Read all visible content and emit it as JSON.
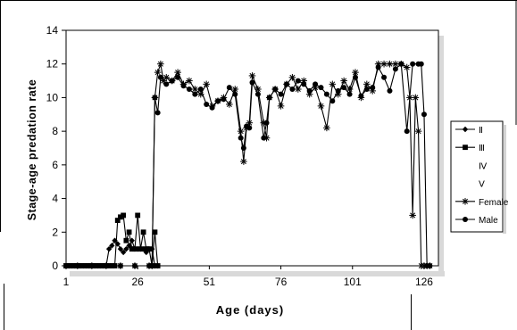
{
  "chart_data": {
    "type": "line",
    "title": "",
    "xlabel": "Age (days)",
    "ylabel": "Stage-age predation rate",
    "xlim": [
      1,
      131
    ],
    "ylim": [
      0,
      14
    ],
    "x_ticks": [
      1,
      26,
      51,
      76,
      101,
      126
    ],
    "y_ticks": [
      0,
      2,
      4,
      6,
      8,
      10,
      12,
      14
    ],
    "grid": false,
    "legend_position": "right",
    "series": [
      {
        "name": "Ⅱ",
        "marker": "diamond",
        "color": "#000000",
        "x": [
          1,
          2,
          3,
          4,
          5,
          6,
          7,
          8,
          9,
          10,
          11,
          12,
          13,
          14,
          15,
          16,
          17,
          18,
          19,
          20,
          21,
          22,
          23,
          24,
          25,
          26,
          27,
          28,
          29,
          30,
          31,
          32,
          33
        ],
        "y": [
          0,
          0,
          0,
          0,
          0,
          0,
          0,
          0,
          0,
          0,
          0,
          0,
          0,
          0,
          0,
          1,
          1.2,
          1.5,
          1.3,
          1,
          0.8,
          1,
          1.2,
          1.5,
          1,
          1,
          1,
          1,
          0.8,
          1,
          1,
          0,
          0
        ]
      },
      {
        "name": "Ⅲ",
        "marker": "square",
        "color": "#000000",
        "x": [
          1,
          2,
          3,
          4,
          5,
          6,
          7,
          8,
          9,
          10,
          11,
          12,
          13,
          14,
          15,
          16,
          17,
          18,
          19,
          20,
          21,
          22,
          23,
          24,
          25,
          26,
          27,
          28,
          29,
          30,
          31,
          32,
          33
        ],
        "y": [
          0,
          0,
          0,
          0,
          0,
          0,
          0,
          0,
          0,
          0,
          0,
          0,
          0,
          0,
          0,
          0,
          0,
          0,
          2.7,
          2.9,
          3,
          1.5,
          2,
          1,
          1,
          3,
          1,
          2,
          1,
          1,
          0,
          2,
          0
        ]
      },
      {
        "name": "Ⅳ",
        "marker": "none",
        "color": "#000000",
        "x": [
          1,
          131
        ],
        "y": [
          0,
          0
        ]
      },
      {
        "name": "Ⅴ",
        "marker": "none",
        "color": "#000000",
        "x": [
          1,
          131
        ],
        "y": [
          0,
          0
        ]
      },
      {
        "name": "Female",
        "marker": "star",
        "color": "#000000",
        "x": [
          1,
          5,
          10,
          15,
          20,
          25,
          30,
          31,
          32,
          33,
          34,
          35,
          36,
          38,
          40,
          42,
          44,
          46,
          48,
          50,
          52,
          54,
          56,
          58,
          60,
          62,
          63,
          64,
          65,
          66,
          68,
          70,
          71,
          72,
          74,
          76,
          78,
          80,
          82,
          84,
          86,
          88,
          90,
          92,
          94,
          96,
          98,
          100,
          102,
          104,
          106,
          108,
          110,
          112,
          114,
          116,
          118,
          120,
          121,
          122,
          123,
          124,
          125,
          126,
          127,
          128
        ],
        "y": [
          0,
          0,
          0,
          0,
          0,
          0,
          0,
          0,
          10,
          11.5,
          12,
          11,
          11.2,
          11,
          11.5,
          10.8,
          11,
          10.5,
          10.2,
          10.8,
          9.5,
          9.8,
          10,
          9.6,
          10.5,
          8,
          6.2,
          8.2,
          8.5,
          11.3,
          10.5,
          8.5,
          7.6,
          10,
          10.5,
          9.5,
          10.8,
          11.2,
          10.5,
          11,
          10.2,
          10.6,
          9.5,
          8.2,
          10.8,
          10.2,
          11,
          10.5,
          11.5,
          10,
          10.8,
          10.4,
          12,
          12,
          12,
          12,
          12,
          11.8,
          10,
          3,
          10,
          8,
          0,
          0,
          0,
          0
        ]
      },
      {
        "name": "Male",
        "marker": "circle",
        "color": "#000000",
        "x": [
          1,
          5,
          10,
          15,
          20,
          25,
          30,
          31,
          32,
          33,
          34,
          36,
          38,
          40,
          42,
          44,
          46,
          48,
          50,
          52,
          54,
          56,
          58,
          60,
          62,
          63,
          64,
          65,
          66,
          68,
          70,
          71,
          72,
          74,
          76,
          78,
          80,
          82,
          84,
          86,
          88,
          90,
          92,
          94,
          96,
          98,
          100,
          102,
          104,
          106,
          108,
          110,
          112,
          114,
          116,
          118,
          120,
          122,
          124,
          125,
          126,
          127,
          128
        ],
        "y": [
          0,
          0,
          0,
          0,
          0,
          0,
          0,
          0,
          10,
          9.1,
          11.2,
          10.8,
          11,
          11.2,
          10.7,
          10.5,
          10.2,
          10.5,
          9.6,
          9.4,
          9.8,
          9.9,
          10.6,
          10.2,
          7.6,
          7,
          8.3,
          8.2,
          10.9,
          10.2,
          7.6,
          8.5,
          10,
          10.5,
          10.2,
          10.8,
          10.5,
          11,
          10.8,
          10.4,
          10.8,
          10.6,
          10.2,
          9.8,
          10.4,
          10.6,
          10.2,
          11.2,
          10.1,
          10.5,
          10.6,
          11.8,
          11.2,
          10.4,
          11.7,
          12,
          8,
          12,
          12,
          12,
          9,
          0,
          0
        ]
      }
    ]
  }
}
